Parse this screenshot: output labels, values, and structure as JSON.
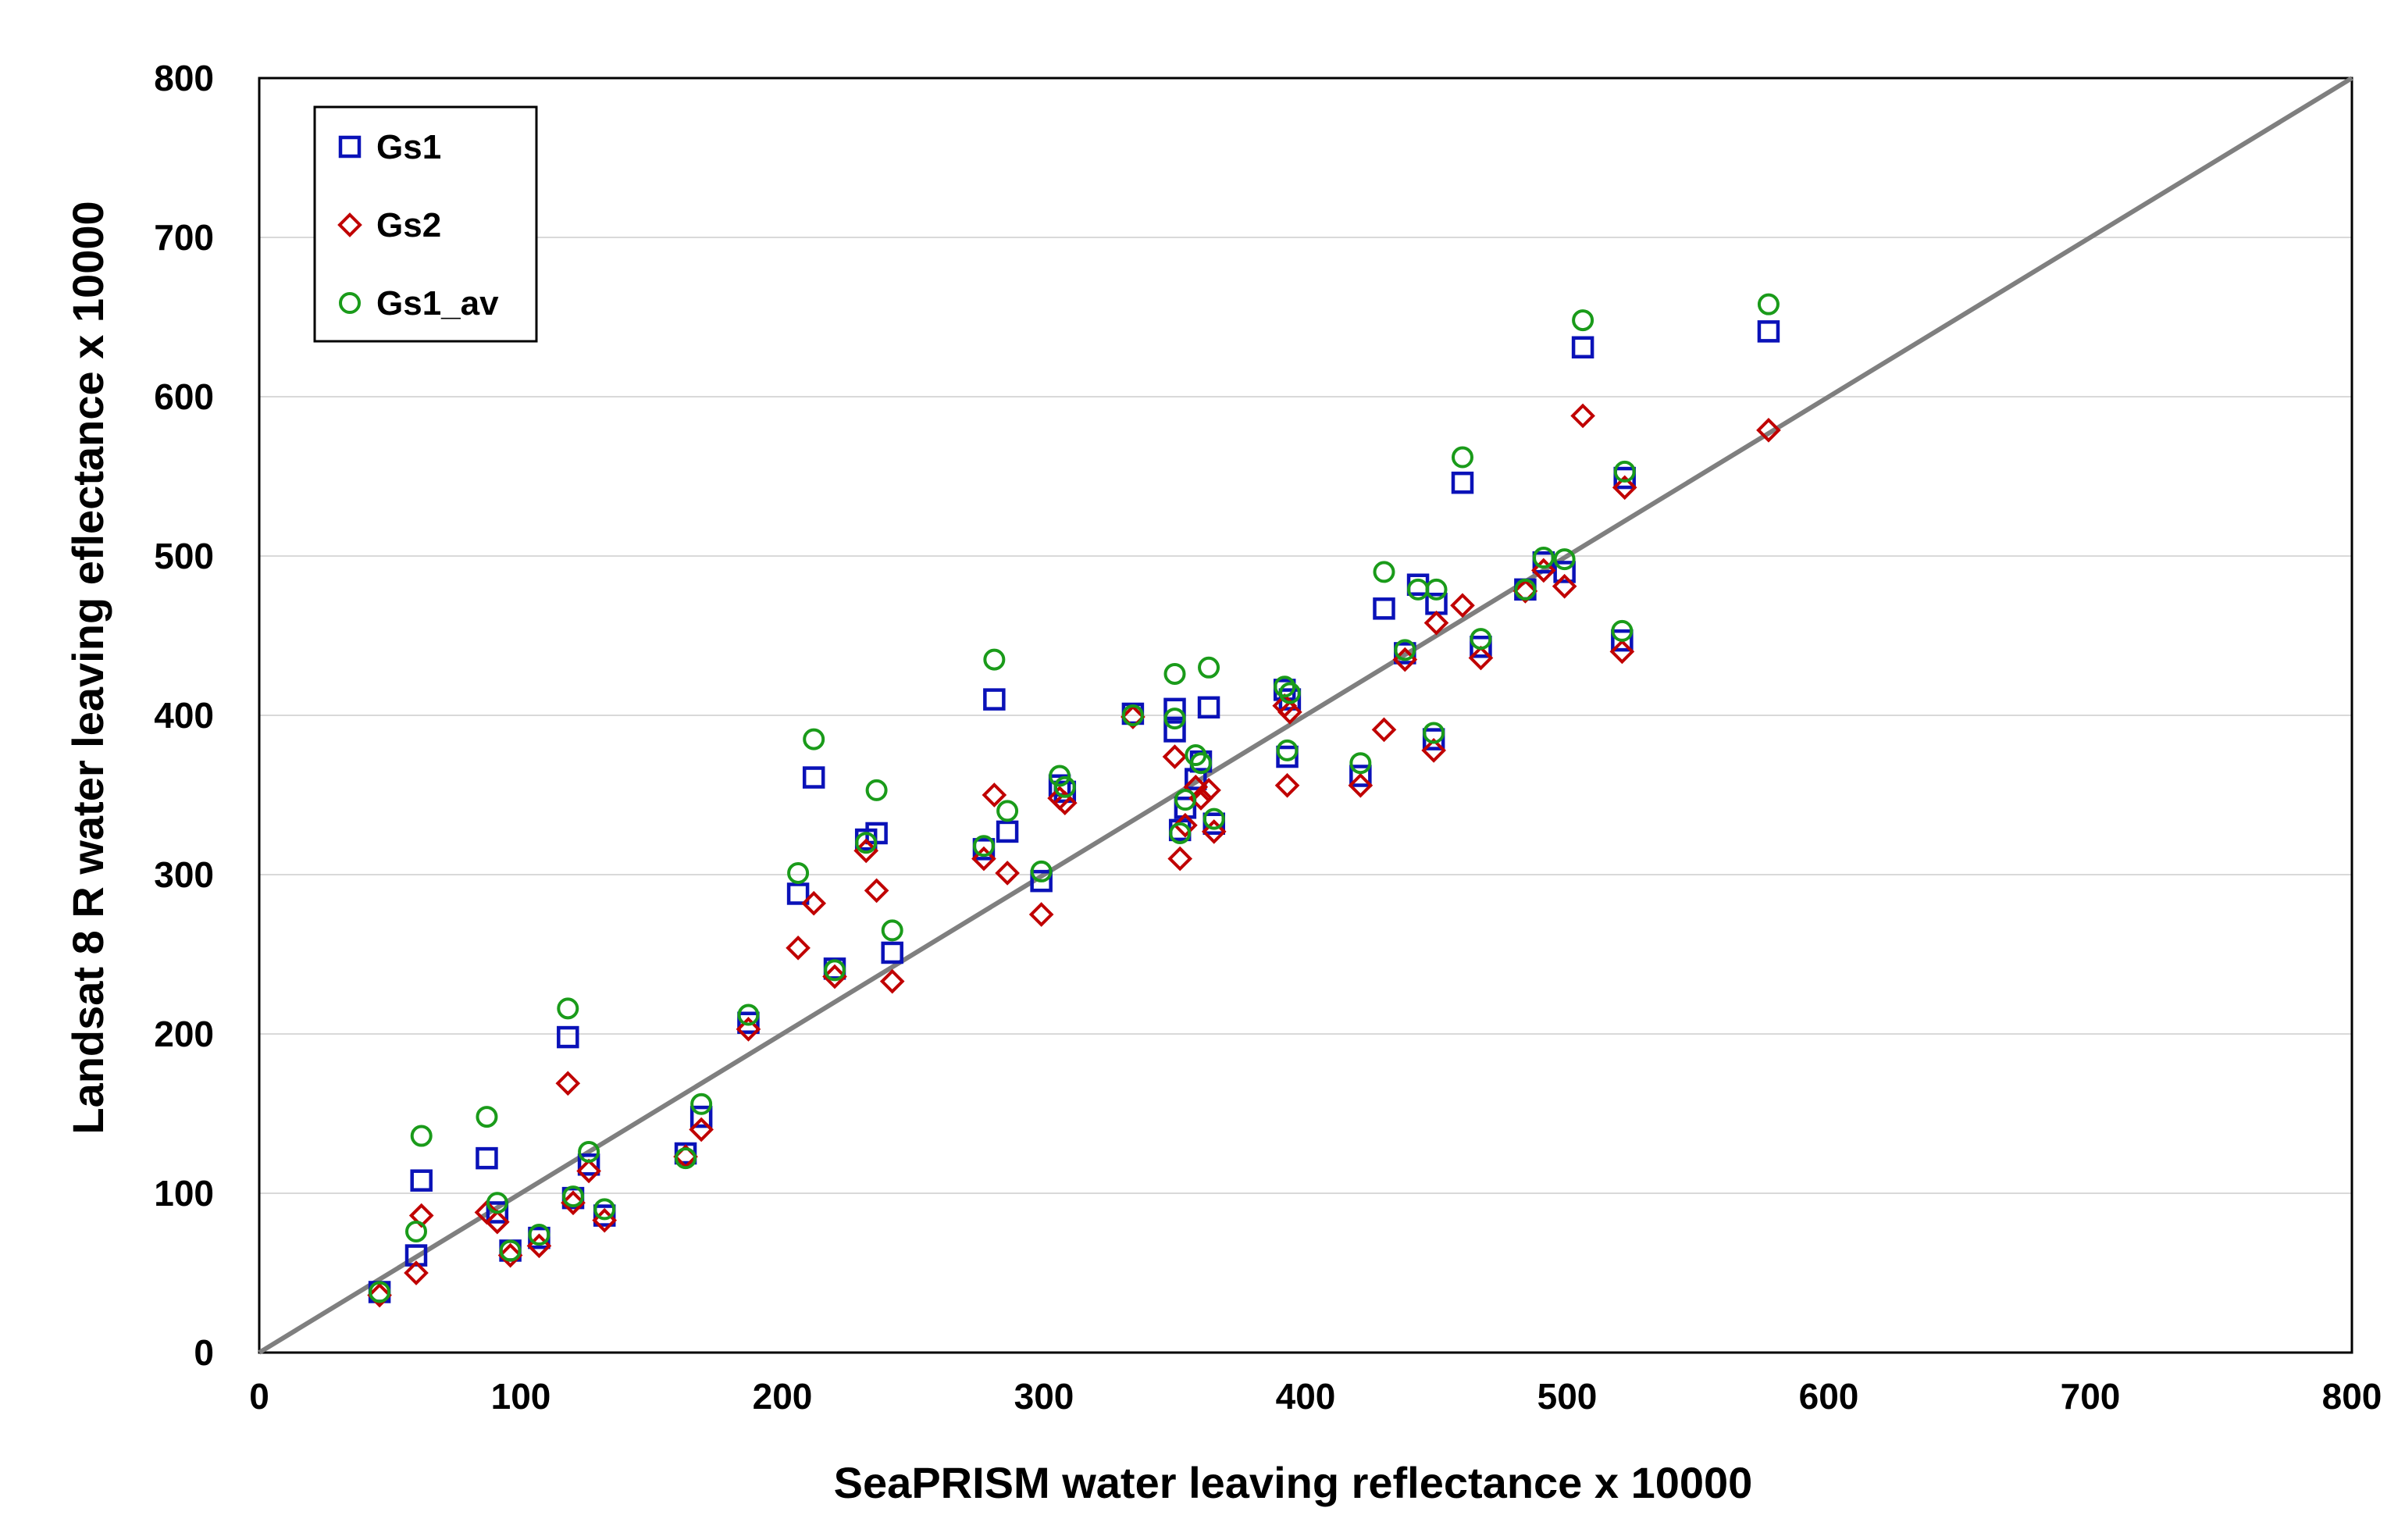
{
  "chart_data": {
    "type": "scatter",
    "title": "",
    "xlabel": "SeaPRISM water leaving reflectance x 10000",
    "ylabel": "Landsat 8 R water leaving eflectance x 10000",
    "xlim": [
      0,
      800
    ],
    "ylim": [
      0,
      800
    ],
    "xticks": [
      0,
      100,
      200,
      300,
      400,
      500,
      600,
      700,
      800
    ],
    "yticks": [
      0,
      100,
      200,
      300,
      400,
      500,
      600,
      700,
      800
    ],
    "x_tick_labels": [
      "0",
      "100",
      "200",
      "300",
      "400",
      "500",
      "600",
      "700",
      "800"
    ],
    "y_tick_labels": [
      "0",
      "100",
      "200",
      "300",
      "400",
      "500",
      "600",
      "700",
      "800"
    ],
    "grid": "horizontal",
    "legend_position": "top-left",
    "reference_line": {
      "name": "1:1 line",
      "x": [
        0,
        800
      ],
      "y": [
        0,
        800
      ],
      "color": "#7f7f7f"
    },
    "series": [
      {
        "name": "Gs1",
        "marker": "square",
        "color": "#0a12b8",
        "points": [
          [
            46,
            38
          ],
          [
            60,
            61
          ],
          [
            62,
            108
          ],
          [
            87,
            122
          ],
          [
            91,
            88
          ],
          [
            96,
            64
          ],
          [
            107,
            72
          ],
          [
            118,
            198
          ],
          [
            120,
            97
          ],
          [
            126,
            118
          ],
          [
            132,
            86
          ],
          [
            163,
            125
          ],
          [
            169,
            148
          ],
          [
            187,
            207
          ],
          [
            206,
            288
          ],
          [
            212,
            361
          ],
          [
            220,
            241
          ],
          [
            232,
            322
          ],
          [
            236,
            326
          ],
          [
            242,
            251
          ],
          [
            277,
            316
          ],
          [
            281,
            410
          ],
          [
            286,
            327
          ],
          [
            299,
            296
          ],
          [
            306,
            356
          ],
          [
            308,
            352
          ],
          [
            334,
            401
          ],
          [
            350,
            404
          ],
          [
            350,
            390
          ],
          [
            352,
            328
          ],
          [
            354,
            342
          ],
          [
            358,
            360
          ],
          [
            360,
            371
          ],
          [
            363,
            405
          ],
          [
            365,
            332
          ],
          [
            392,
            416
          ],
          [
            393,
            374
          ],
          [
            394,
            410
          ],
          [
            421,
            362
          ],
          [
            430,
            467
          ],
          [
            438,
            439
          ],
          [
            443,
            482
          ],
          [
            449,
            385
          ],
          [
            450,
            470
          ],
          [
            460,
            546
          ],
          [
            467,
            443
          ],
          [
            484,
            479
          ],
          [
            491,
            496
          ],
          [
            499,
            490
          ],
          [
            506,
            631
          ],
          [
            521,
            447
          ],
          [
            522,
            549
          ],
          [
            577,
            641
          ]
        ]
      },
      {
        "name": "Gs2",
        "marker": "diamond",
        "color": "#c00000",
        "points": [
          [
            46,
            36
          ],
          [
            60,
            50
          ],
          [
            62,
            86
          ],
          [
            87,
            88
          ],
          [
            91,
            82
          ],
          [
            96,
            61
          ],
          [
            107,
            67
          ],
          [
            118,
            169
          ],
          [
            120,
            94
          ],
          [
            126,
            114
          ],
          [
            132,
            83
          ],
          [
            163,
            123
          ],
          [
            169,
            140
          ],
          [
            187,
            203
          ],
          [
            206,
            254
          ],
          [
            212,
            282
          ],
          [
            220,
            236
          ],
          [
            232,
            315
          ],
          [
            236,
            290
          ],
          [
            242,
            233
          ],
          [
            277,
            310
          ],
          [
            281,
            350
          ],
          [
            286,
            301
          ],
          [
            299,
            275
          ],
          [
            306,
            348
          ],
          [
            308,
            345
          ],
          [
            334,
            399
          ],
          [
            350,
            374
          ],
          [
            352,
            310
          ],
          [
            354,
            331
          ],
          [
            358,
            355
          ],
          [
            360,
            348
          ],
          [
            363,
            353
          ],
          [
            365,
            327
          ],
          [
            392,
            406
          ],
          [
            393,
            356
          ],
          [
            394,
            402
          ],
          [
            421,
            356
          ],
          [
            430,
            391
          ],
          [
            438,
            435
          ],
          [
            449,
            378
          ],
          [
            450,
            458
          ],
          [
            460,
            469
          ],
          [
            467,
            436
          ],
          [
            484,
            478
          ],
          [
            491,
            491
          ],
          [
            499,
            481
          ],
          [
            506,
            588
          ],
          [
            521,
            440
          ],
          [
            522,
            543
          ],
          [
            577,
            579
          ]
        ]
      },
      {
        "name": "Gs1_av",
        "marker": "circle",
        "color": "#1a9b1a",
        "points": [
          [
            46,
            38
          ],
          [
            60,
            76
          ],
          [
            62,
            136
          ],
          [
            87,
            148
          ],
          [
            91,
            94
          ],
          [
            96,
            64
          ],
          [
            107,
            74
          ],
          [
            118,
            216
          ],
          [
            120,
            98
          ],
          [
            126,
            126
          ],
          [
            132,
            90
          ],
          [
            163,
            122
          ],
          [
            169,
            156
          ],
          [
            187,
            212
          ],
          [
            206,
            301
          ],
          [
            212,
            385
          ],
          [
            220,
            240
          ],
          [
            232,
            320
          ],
          [
            236,
            353
          ],
          [
            242,
            265
          ],
          [
            277,
            318
          ],
          [
            281,
            435
          ],
          [
            286,
            340
          ],
          [
            299,
            302
          ],
          [
            306,
            362
          ],
          [
            308,
            355
          ],
          [
            334,
            400
          ],
          [
            350,
            426
          ],
          [
            350,
            398
          ],
          [
            352,
            326
          ],
          [
            354,
            347
          ],
          [
            358,
            375
          ],
          [
            360,
            370
          ],
          [
            363,
            430
          ],
          [
            365,
            335
          ],
          [
            392,
            418
          ],
          [
            393,
            378
          ],
          [
            394,
            414
          ],
          [
            421,
            370
          ],
          [
            430,
            490
          ],
          [
            438,
            441
          ],
          [
            443,
            479
          ],
          [
            449,
            389
          ],
          [
            450,
            479
          ],
          [
            460,
            562
          ],
          [
            467,
            448
          ],
          [
            484,
            479
          ],
          [
            491,
            499
          ],
          [
            499,
            498
          ],
          [
            506,
            648
          ],
          [
            521,
            453
          ],
          [
            522,
            553
          ],
          [
            577,
            658
          ]
        ]
      }
    ]
  }
}
